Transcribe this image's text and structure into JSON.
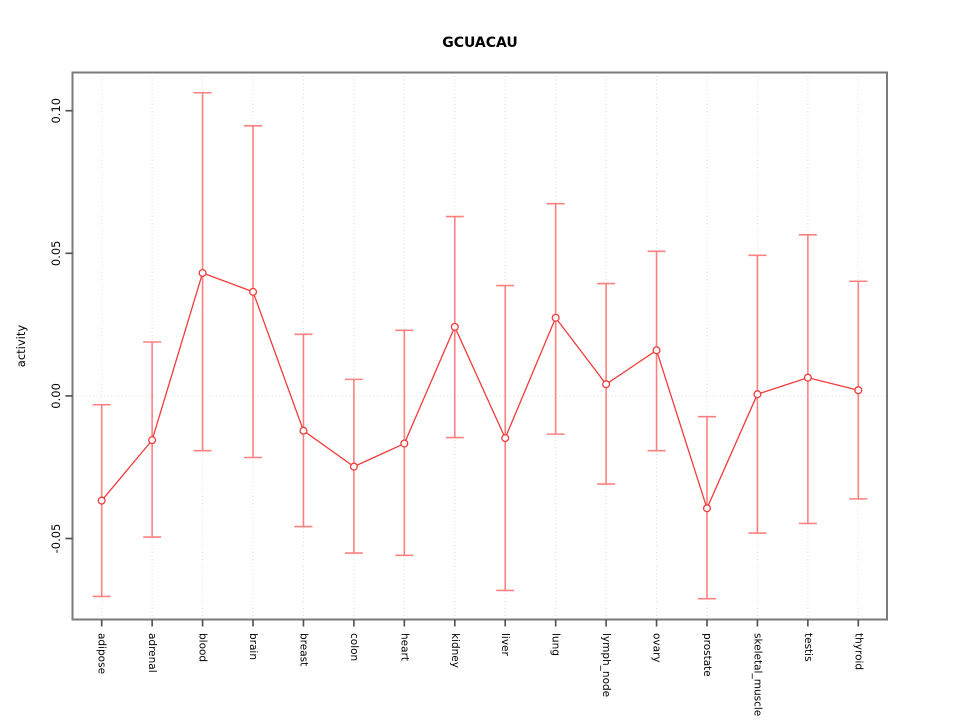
{
  "chart_data": {
    "type": "line",
    "subtype": "means-with-error-bars",
    "title": "GCUACAU",
    "xlabel": "",
    "ylabel": "activity",
    "categories": [
      "adipose",
      "adrenal",
      "blood",
      "brain",
      "breast",
      "colon",
      "heart",
      "kidney",
      "liver",
      "lung",
      "lymph_node",
      "ovary",
      "prostate",
      "skeletal_muscle",
      "testis",
      "thyroid"
    ],
    "series": [
      {
        "name": "activity",
        "values": [
          -0.0367,
          -0.0155,
          0.0431,
          0.0365,
          -0.0122,
          -0.0248,
          -0.0167,
          0.0242,
          -0.0148,
          0.0274,
          0.0041,
          0.016,
          -0.0394,
          0.0006,
          0.0064,
          0.002
        ],
        "ci_low": [
          -0.0703,
          -0.0495,
          -0.0192,
          -0.0216,
          -0.0458,
          -0.0551,
          -0.0559,
          -0.0146,
          -0.0682,
          -0.0134,
          -0.0309,
          -0.0192,
          -0.0711,
          -0.0481,
          -0.0447,
          -0.0361
        ],
        "ci_high": [
          -0.0031,
          0.0189,
          0.1063,
          0.0947,
          0.0216,
          0.0058,
          0.023,
          0.0629,
          0.0387,
          0.0674,
          0.0394,
          0.0507,
          -0.0073,
          0.0493,
          0.0565,
          0.0402
        ]
      }
    ],
    "ylim": [
      -0.0784,
      0.1134
    ],
    "yticks": [
      -0.05,
      0,
      0.05,
      0.1
    ],
    "ytick_labels": [
      "-0.05",
      "0.00",
      "0.05",
      "0.10"
    ],
    "grid": {
      "vertical_gridlines": true,
      "horizontal_zero_line": true,
      "style": "dotted"
    },
    "legend": "none",
    "marker": "open-circle",
    "colors": {
      "line": "#f03c3c",
      "marker_stroke": "#f03c3c",
      "marker_fill": "#ffffff",
      "errorbar": "#ff8080",
      "gridline": "#dcdcdc",
      "zero_line": "#dcdcdc",
      "box_border": "#7a7a7a",
      "tick": "#4d4d4d",
      "text": "#000000",
      "background": "#ffffff"
    }
  }
}
